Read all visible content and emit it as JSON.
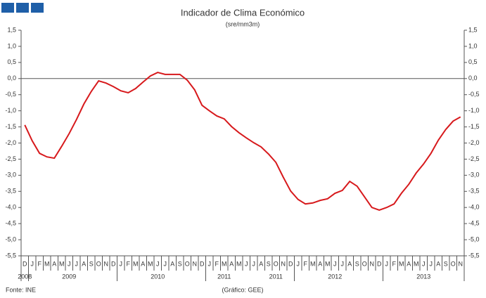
{
  "chart_data": {
    "type": "line",
    "title": "Indicador de Clima Económico",
    "subtitle": "(sre/mm3m)",
    "source": "Fonte: INE",
    "credit": "(Gráfico: GEE)",
    "categories": [
      "D",
      "J",
      "F",
      "M",
      "A",
      "M",
      "J",
      "J",
      "A",
      "S",
      "O",
      "N",
      "D",
      "J",
      "F",
      "M",
      "A",
      "M",
      "J",
      "J",
      "A",
      "S",
      "O",
      "N",
      "D",
      "J",
      "F",
      "M",
      "A",
      "M",
      "J",
      "J",
      "A",
      "S",
      "O",
      "N",
      "D",
      "J",
      "F",
      "M",
      "A",
      "M",
      "J",
      "J",
      "A",
      "S",
      "O",
      "N",
      "D",
      "J",
      "F",
      "M",
      "A",
      "M",
      "J",
      "J",
      "A",
      "S",
      "O",
      "N"
    ],
    "year_labels": [
      "2008",
      null,
      null,
      null,
      null,
      null,
      "2009",
      null,
      null,
      null,
      null,
      null,
      null,
      null,
      null,
      null,
      null,
      null,
      "2010",
      null,
      null,
      null,
      null,
      null,
      null,
      null,
      null,
      "2011",
      null,
      null,
      null,
      null,
      null,
      null,
      "2011",
      null,
      null,
      null,
      null,
      null,
      null,
      null,
      "2012",
      null,
      null,
      null,
      null,
      null,
      null,
      null,
      null,
      null,
      null,
      null,
      "2013",
      null,
      null,
      null,
      null,
      null
    ],
    "series": [
      {
        "color": "#d7191c",
        "values": [
          -1.44,
          -1.93,
          -2.32,
          -2.43,
          -2.47,
          -2.1,
          -1.71,
          -1.27,
          -0.79,
          -0.4,
          -0.07,
          -0.14,
          -0.25,
          -0.38,
          -0.44,
          -0.31,
          -0.11,
          0.08,
          0.19,
          0.13,
          0.13,
          0.13,
          -0.05,
          -0.35,
          -0.83,
          -1.0,
          -1.16,
          -1.25,
          -1.49,
          -1.68,
          -1.84,
          -1.99,
          -2.12,
          -2.34,
          -2.6,
          -3.06,
          -3.49,
          -3.75,
          -3.89,
          -3.86,
          -3.78,
          -3.73,
          -3.56,
          -3.47,
          -3.19,
          -3.34,
          -3.67,
          -4.0,
          -4.08,
          -4.0,
          -3.89,
          -3.56,
          -3.28,
          -2.93,
          -2.65,
          -2.32,
          -1.91,
          -1.58,
          -1.32,
          -1.19
        ]
      }
    ],
    "ylim": [
      -5.5,
      1.5
    ],
    "yticks": [
      {
        "value": 1.5,
        "label": "1,5"
      },
      {
        "value": 1,
        "label": "1,0"
      },
      {
        "value": 0.5,
        "label": "0,5"
      },
      {
        "value": 0,
        "label": "0,0"
      },
      {
        "value": -0.5,
        "label": "-0,5"
      },
      {
        "value": -1,
        "label": "-1,0"
      },
      {
        "value": -1.5,
        "label": "-1,5"
      },
      {
        "value": -2,
        "label": "-2,0"
      },
      {
        "value": -2.5,
        "label": "-2,5"
      },
      {
        "value": -3,
        "label": "-3,0"
      },
      {
        "value": -3.5,
        "label": "-3,5"
      },
      {
        "value": -4,
        "label": "-4,0"
      },
      {
        "value": -4.5,
        "label": "-4,5"
      },
      {
        "value": -5,
        "label": "-5,0"
      },
      {
        "value": -5.5,
        "label": "-5,5"
      }
    ]
  }
}
